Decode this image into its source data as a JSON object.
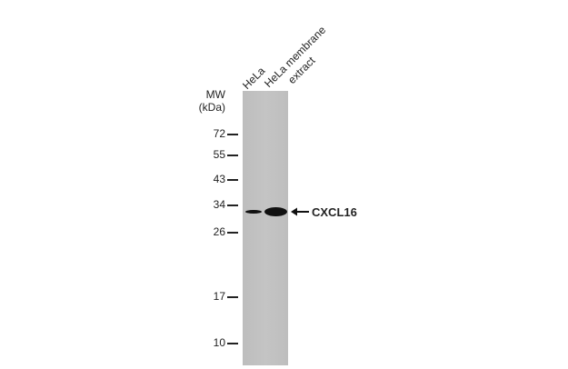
{
  "lanes": [
    {
      "label": "HeLa"
    },
    {
      "label": "HeLa membrane",
      "label2": "extract"
    }
  ],
  "mw_header": {
    "line1": "MW",
    "line2": "(kDa)"
  },
  "markers": [
    "72",
    "55",
    "43",
    "34",
    "26",
    "17",
    "10"
  ],
  "target": {
    "label": "CXCL16",
    "arrow_icon": "left-arrow-icon"
  }
}
